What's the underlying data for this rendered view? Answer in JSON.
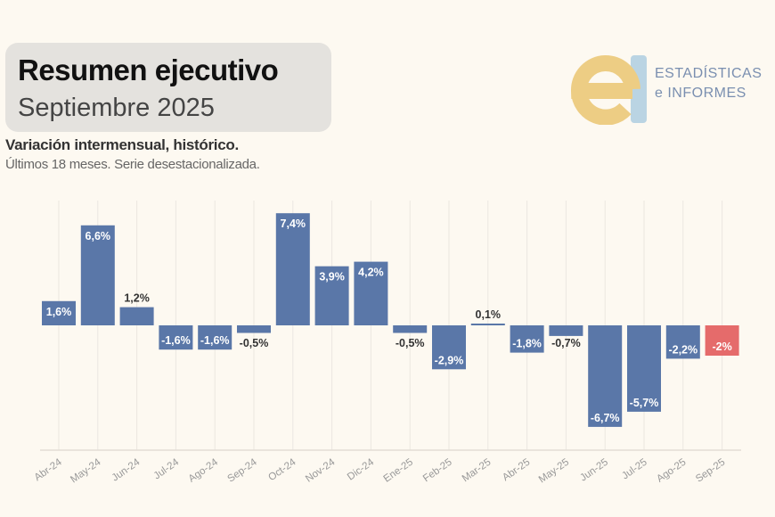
{
  "header": {
    "title": "Resumen ejecutivo",
    "subtitle": "Septiembre 2025"
  },
  "logo": {
    "line1": "ESTADÍSTICAS",
    "line2": "e INFORMES",
    "colors": {
      "e": "#edcd84",
      "bar": "#a9cbe0"
    }
  },
  "chart_data": {
    "type": "bar",
    "title": "Variación intermensual, histórico.",
    "subtitle": "Últimos 18 meses. Serie desestacionalizada.",
    "categories": [
      "Abr-24",
      "May-24",
      "Jun-24",
      "Jul-24",
      "Ago-24",
      "Sep-24",
      "Oct-24",
      "Nov-24",
      "Dic-24",
      "Ene-25",
      "Feb-25",
      "Mar-25",
      "Abr-25",
      "May-25",
      "Jun-25",
      "Jul-25",
      "Ago-25",
      "Sep-25"
    ],
    "values": [
      1.6,
      6.6,
      1.2,
      -1.6,
      -1.6,
      -0.5,
      7.4,
      3.9,
      4.2,
      -0.5,
      -2.9,
      0.1,
      -1.8,
      -0.7,
      -6.7,
      -5.7,
      -2.2,
      -2
    ],
    "labels": [
      "1,6%",
      "6,6%",
      "1,2%",
      "-1,6%",
      "-1,6%",
      "-0,5%",
      "7,4%",
      "3,9%",
      "4,2%",
      "-0,5%",
      "-2,9%",
      "0,1%",
      "-1,8%",
      "-0,7%",
      "-6,7%",
      "-5,7%",
      "-2,2%",
      "-2%"
    ],
    "ylim": [
      -8,
      8
    ],
    "grid": "vertical",
    "colors": {
      "default": "#5a77a8",
      "highlight": "#e56b6b",
      "highlight_category": "Sep-25"
    }
  }
}
